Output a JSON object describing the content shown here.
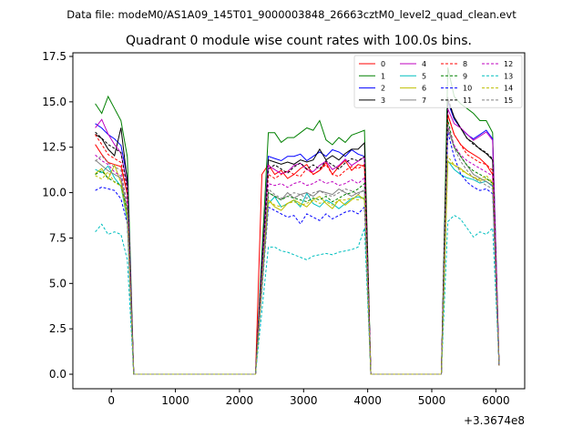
{
  "chart_data": {
    "type": "line",
    "suptitle": "Data file: modeM0/AS1A09_145T01_9000003848_26663cztM0_level2_quad_clean.evt",
    "title": "Quadrant 0 module wise count rates with 100.0s bins.",
    "xlabel": "",
    "ylabel": "",
    "x_offset_label": "+3.3674e8",
    "xlim": [
      -600,
      6450
    ],
    "ylim": [
      -0.8,
      17.7
    ],
    "x_ticks": [
      0,
      1000,
      2000,
      3000,
      4000,
      5000,
      6000
    ],
    "x_tick_labels": [
      "0",
      "1000",
      "2000",
      "3000",
      "4000",
      "5000",
      "6000"
    ],
    "y_ticks": [
      0.0,
      2.5,
      5.0,
      7.5,
      10.0,
      12.5,
      15.0,
      17.5
    ],
    "y_tick_labels": [
      "0.0",
      "2.5",
      "5.0",
      "7.5",
      "10.0",
      "12.5",
      "15.0",
      "17.5"
    ],
    "grid": false,
    "legend": {
      "placement": "top-right",
      "columns": 4
    },
    "segments": [
      {
        "start": -250,
        "n": 6
      },
      {
        "start": 2350,
        "n": 18
      },
      {
        "start": 5250,
        "n": 9
      }
    ],
    "gap_value": 0,
    "series": [
      {
        "name": "0",
        "color": "#ff0000",
        "dash": "solid",
        "base": 11.0,
        "mult": [
          1.15,
          1.1,
          1.06,
          1.05,
          1.04,
          1.0,
          0.0,
          1.0,
          1.05,
          1.0,
          1.02,
          0.98,
          1.0,
          1.03,
          1.05,
          1.0,
          1.02,
          1.06,
          1.0,
          1.04,
          1.07,
          1.02,
          1.05,
          1.04,
          0.0,
          1.15,
          1.3,
          1.2,
          1.15,
          1.12,
          1.1,
          1.08,
          1.05,
          1.0
        ]
      },
      {
        "name": "1",
        "color": "#008000",
        "dash": "solid",
        "base": 13.3,
        "mult": [
          1.12,
          1.08,
          1.15,
          1.1,
          1.05,
          1.03,
          0.0,
          0.5,
          1.0,
          1.0,
          0.96,
          0.98,
          0.98,
          1.0,
          1.02,
          1.01,
          1.05,
          0.97,
          0.95,
          0.98,
          0.96,
          0.99,
          1.0,
          1.01,
          0.0,
          1.0,
          1.27,
          1.15,
          1.12,
          1.1,
          1.08,
          1.05,
          1.05,
          1.0
        ]
      },
      {
        "name": "2",
        "color": "#0000ff",
        "dash": "solid",
        "base": 12.0,
        "mult": [
          1.15,
          1.13,
          1.1,
          1.08,
          1.05,
          1.03,
          0.0,
          0.5,
          1.0,
          0.99,
          0.98,
          1.0,
          1.0,
          1.01,
          0.98,
          1.0,
          1.02,
          1.0,
          1.03,
          1.02,
          1.0,
          1.03,
          1.01,
          1.0,
          0.0,
          1.0,
          1.25,
          1.17,
          1.13,
          1.1,
          1.08,
          1.1,
          1.12,
          1.08
        ]
      },
      {
        "name": "3",
        "color": "#000000",
        "dash": "solid",
        "base": 11.8,
        "mult": [
          1.12,
          1.1,
          1.05,
          1.02,
          1.15,
          1.08,
          0.0,
          0.5,
          1.0,
          0.99,
          0.98,
          0.99,
          0.98,
          1.0,
          0.99,
          1.0,
          1.05,
          1.0,
          1.02,
          1.0,
          1.03,
          1.05,
          1.05,
          1.08,
          0.0,
          1.0,
          1.28,
          1.2,
          1.15,
          1.1,
          1.08,
          1.05,
          1.03,
          1.0
        ]
      },
      {
        "name": "4",
        "color": "#bf00bf",
        "dash": "solid",
        "base": 11.5,
        "mult": [
          1.18,
          1.22,
          1.15,
          1.1,
          1.06,
          1.03,
          0.0,
          0.5,
          1.0,
          0.98,
          0.96,
          0.97,
          1.0,
          1.01,
          0.98,
          0.97,
          1.0,
          1.02,
          0.98,
          1.0,
          1.03,
          1.0,
          1.02,
          1.04,
          0.0,
          1.0,
          1.27,
          1.2,
          1.18,
          1.15,
          1.12,
          1.14,
          1.16,
          1.12
        ]
      },
      {
        "name": "5",
        "color": "#00bfbf",
        "dash": "solid",
        "base": 9.4,
        "mult": [
          1.2,
          1.18,
          1.22,
          1.15,
          1.1,
          1.05,
          0.0,
          0.5,
          1.0,
          1.04,
          0.98,
          1.0,
          1.02,
          0.98,
          1.06,
          1.0,
          0.98,
          1.02,
          1.0,
          0.97,
          1.0,
          1.03,
          1.04,
          1.03,
          0.0,
          1.0,
          1.25,
          1.2,
          1.17,
          1.15,
          1.14,
          1.12,
          1.13,
          1.1
        ]
      },
      {
        "name": "6",
        "color": "#bfbf00",
        "dash": "solid",
        "base": 9.6,
        "mult": [
          1.15,
          1.18,
          1.12,
          1.2,
          1.1,
          1.06,
          0.0,
          0.5,
          1.0,
          0.96,
          0.94,
          0.98,
          1.0,
          0.98,
          0.96,
          1.0,
          1.02,
          0.98,
          0.95,
          1.0,
          0.97,
          1.0,
          1.03,
          1.0,
          0.0,
          1.0,
          1.22,
          1.2,
          1.18,
          1.15,
          1.13,
          1.11,
          1.12,
          1.1
        ]
      },
      {
        "name": "7",
        "color": "#808080",
        "dash": "solid",
        "base": 10.0,
        "mult": [
          1.18,
          1.15,
          1.12,
          1.1,
          1.08,
          1.05,
          0.0,
          0.5,
          1.0,
          0.98,
          0.96,
          1.0,
          0.97,
          0.99,
          1.0,
          0.98,
          1.01,
          1.0,
          0.99,
          1.02,
          1.0,
          0.98,
          1.0,
          1.01,
          0.0,
          1.0,
          1.35,
          1.25,
          1.2,
          1.15,
          1.1,
          1.08,
          1.06,
          1.04
        ]
      },
      {
        "name": "8",
        "color": "#ff0000",
        "dash": "dashed",
        "base": 11.0,
        "mult": [
          1.2,
          1.15,
          1.1,
          1.08,
          1.06,
          1.02,
          0.0,
          0.5,
          1.0,
          0.98,
          1.0,
          1.02,
          1.0,
          0.99,
          1.03,
          1.0,
          1.02,
          1.05,
          1.0,
          0.99,
          1.02,
          1.04,
          1.03,
          1.05,
          0.0,
          1.0,
          1.3,
          1.2,
          1.15,
          1.1,
          1.08,
          1.06,
          1.05,
          1.02
        ]
      },
      {
        "name": "9",
        "color": "#008000",
        "dash": "dashed",
        "base": 10.0,
        "mult": [
          1.1,
          1.12,
          1.08,
          1.06,
          1.04,
          1.02,
          0.0,
          0.5,
          1.0,
          0.98,
          0.96,
          0.98,
          0.97,
          0.96,
          0.95,
          0.97,
          0.96,
          0.98,
          0.95,
          0.97,
          0.99,
          1.0,
          1.02,
          1.05,
          0.0,
          1.0,
          1.4,
          1.25,
          1.2,
          1.15,
          1.12,
          1.1,
          1.08,
          1.05
        ]
      },
      {
        "name": "10",
        "color": "#0000ff",
        "dash": "dashed",
        "base": 9.2,
        "mult": [
          1.1,
          1.12,
          1.11,
          1.1,
          1.05,
          1.02,
          0.0,
          0.5,
          1.0,
          0.98,
          0.96,
          0.94,
          0.95,
          0.9,
          0.96,
          0.94,
          0.92,
          0.96,
          0.93,
          0.95,
          0.97,
          0.98,
          0.96,
          1.0,
          0.0,
          1.0,
          1.45,
          1.3,
          1.2,
          1.15,
          1.12,
          1.1,
          1.11,
          1.08
        ]
      },
      {
        "name": "11",
        "color": "#000000",
        "dash": "dashed",
        "base": 11.3,
        "mult": [
          1.18,
          1.15,
          1.12,
          1.1,
          1.08,
          1.05,
          0.0,
          0.5,
          1.0,
          1.02,
          1.0,
          0.98,
          1.01,
          1.03,
          1.0,
          1.02,
          1.0,
          1.04,
          1.02,
          1.0,
          1.03,
          1.05,
          1.04,
          1.06,
          0.0,
          1.0,
          1.35,
          1.25,
          1.2,
          1.15,
          1.12,
          1.1,
          1.08,
          1.05
        ]
      },
      {
        "name": "12",
        "color": "#bf00bf",
        "dash": "dashed",
        "base": 10.5,
        "mult": [
          1.15,
          1.12,
          1.1,
          1.06,
          1.04,
          1.02,
          0.0,
          0.5,
          1.0,
          0.99,
          1.0,
          0.98,
          1.0,
          1.01,
          0.99,
          1.0,
          1.02,
          1.0,
          1.01,
          0.99,
          1.0,
          1.02,
          1.0,
          1.03,
          0.0,
          1.0,
          1.3,
          1.2,
          1.15,
          1.12,
          1.1,
          1.08,
          1.06,
          1.04
        ]
      },
      {
        "name": "13",
        "color": "#00bfbf",
        "dash": "dashed",
        "base": 7.0,
        "mult": [
          1.12,
          1.18,
          1.1,
          1.12,
          1.1,
          1.05,
          0.0,
          0.5,
          1.0,
          1.0,
          0.97,
          0.96,
          0.94,
          0.92,
          0.9,
          0.93,
          0.94,
          0.95,
          0.94,
          0.96,
          0.97,
          0.98,
          1.0,
          1.15,
          0.0,
          1.0,
          1.2,
          1.25,
          1.22,
          1.15,
          1.08,
          1.12,
          1.1,
          1.15
        ]
      },
      {
        "name": "14",
        "color": "#bfbf00",
        "dash": "dashed",
        "base": 9.6,
        "mult": [
          1.14,
          1.12,
          1.16,
          1.1,
          1.08,
          1.04,
          0.0,
          0.5,
          1.0,
          0.97,
          0.96,
          0.98,
          0.99,
          0.97,
          0.98,
          1.0,
          0.98,
          0.99,
          0.97,
          1.0,
          1.0,
          1.01,
          1.0,
          1.02,
          0.0,
          1.0,
          1.25,
          1.2,
          1.17,
          1.15,
          1.13,
          1.12,
          1.14,
          1.1
        ]
      },
      {
        "name": "15",
        "color": "#808080",
        "dash": "dashed",
        "base": 10.2,
        "mult": [
          1.15,
          1.18,
          1.14,
          1.12,
          1.1,
          1.06,
          0.0,
          0.5,
          1.0,
          0.97,
          0.95,
          0.96,
          0.98,
          0.97,
          0.95,
          0.98,
          0.99,
          0.97,
          0.96,
          0.98,
          1.0,
          0.99,
          0.97,
          1.0,
          0.0,
          1.0,
          1.35,
          1.22,
          1.15,
          1.1,
          1.06,
          1.04,
          1.02,
          1.0
        ]
      }
    ]
  }
}
